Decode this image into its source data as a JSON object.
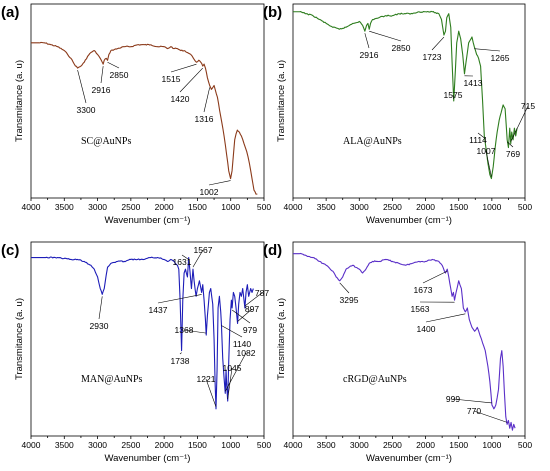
{
  "chart_data": [
    {
      "type": "line",
      "panel": "(a)",
      "sample": "SC@AuNPs",
      "color": "#8b3a1a",
      "xlabel": "Wavenumber (cm⁻¹)",
      "ylabel": "Transmitance (a. u)",
      "xlim": [
        4000,
        500
      ],
      "ylim": [
        0,
        1
      ],
      "xticks": [
        "4000",
        "3500",
        "3000",
        "2500",
        "2000",
        "1500",
        "1000",
        "500"
      ],
      "series": [
        {
          "x": [
            4000,
            3900,
            3800,
            3700,
            3600,
            3500,
            3450,
            3400,
            3350,
            3300,
            3250,
            3200,
            3150,
            3100,
            3050,
            3000,
            2960,
            2930,
            2916,
            2900,
            2870,
            2850,
            2830,
            2800,
            2700,
            2600,
            2500,
            2400,
            2300,
            2200,
            2100,
            2000,
            1950,
            1900,
            1850,
            1800,
            1750,
            1700,
            1650,
            1600,
            1560,
            1515,
            1480,
            1450,
            1420,
            1400,
            1380,
            1350,
            1316,
            1290,
            1250,
            1200,
            1150,
            1100,
            1060,
            1030,
            1002,
            980,
            960,
            940,
            920,
            900,
            870,
            840,
            800,
            760,
            720,
            680,
            650,
            620,
            600
          ],
          "y": [
            0.8,
            0.8,
            0.8,
            0.79,
            0.78,
            0.76,
            0.74,
            0.72,
            0.69,
            0.67,
            0.68,
            0.7,
            0.73,
            0.75,
            0.76,
            0.74,
            0.72,
            0.7,
            0.69,
            0.71,
            0.72,
            0.71,
            0.74,
            0.76,
            0.77,
            0.78,
            0.78,
            0.79,
            0.79,
            0.79,
            0.78,
            0.78,
            0.77,
            0.78,
            0.77,
            0.77,
            0.76,
            0.76,
            0.75,
            0.74,
            0.72,
            0.7,
            0.71,
            0.7,
            0.68,
            0.69,
            0.67,
            0.62,
            0.58,
            0.56,
            0.58,
            0.52,
            0.42,
            0.32,
            0.22,
            0.14,
            0.1,
            0.14,
            0.22,
            0.3,
            0.33,
            0.35,
            0.34,
            0.32,
            0.28,
            0.24,
            0.18,
            0.1,
            0.04,
            0.02,
            0.02
          ]
        }
      ],
      "annotations": [
        "3300",
        "2916",
        "2850",
        "1515",
        "1420",
        "1316",
        "1002"
      ]
    },
    {
      "type": "line",
      "panel": "(b)",
      "sample": "ALA@AuNPs",
      "color": "#2e7d1e",
      "xlabel": "Wavenumber (cm⁻¹)",
      "ylabel": "Transmitance (a. u)",
      "xlim": [
        4000,
        500
      ],
      "ylim": [
        0,
        1
      ],
      "xticks": [
        "4000",
        "3500",
        "3000",
        "2500",
        "2000",
        "1500",
        "1000",
        "500"
      ],
      "series": [
        {
          "x": [
            4000,
            3900,
            3800,
            3700,
            3600,
            3500,
            3400,
            3300,
            3200,
            3100,
            3000,
            2950,
            2916,
            2890,
            2870,
            2850,
            2830,
            2800,
            2700,
            2600,
            2500,
            2400,
            2300,
            2200,
            2100,
            2000,
            1900,
            1800,
            1760,
            1723,
            1700,
            1680,
            1650,
            1620,
            1600,
            1575,
            1550,
            1530,
            1500,
            1470,
            1440,
            1413,
            1390,
            1350,
            1300,
            1265,
            1230,
            1200,
            1170,
            1140,
            1114,
            1090,
            1060,
            1030,
            1007,
            980,
            950,
            920,
            890,
            860,
            830,
            800,
            769,
            750,
            730,
            715,
            700,
            680,
            660,
            640,
            620
          ],
          "y": [
            0.96,
            0.96,
            0.95,
            0.94,
            0.92,
            0.9,
            0.88,
            0.87,
            0.88,
            0.9,
            0.91,
            0.89,
            0.86,
            0.89,
            0.9,
            0.87,
            0.9,
            0.92,
            0.93,
            0.94,
            0.94,
            0.95,
            0.95,
            0.95,
            0.96,
            0.96,
            0.96,
            0.95,
            0.92,
            0.84,
            0.86,
            0.93,
            0.95,
            0.88,
            0.7,
            0.5,
            0.66,
            0.8,
            0.86,
            0.82,
            0.74,
            0.64,
            0.7,
            0.8,
            0.83,
            0.78,
            0.74,
            0.72,
            0.68,
            0.5,
            0.32,
            0.26,
            0.18,
            0.12,
            0.1,
            0.16,
            0.26,
            0.34,
            0.4,
            0.44,
            0.48,
            0.46,
            0.3,
            0.26,
            0.36,
            0.28,
            0.34,
            0.3,
            0.36,
            0.32,
            0.36
          ]
        }
      ],
      "annotations": [
        "2916",
        "2850",
        "1723",
        "1575",
        "1413",
        "1265",
        "1114",
        "1007",
        "769",
        "715"
      ]
    },
    {
      "type": "line",
      "panel": "(c)",
      "sample": "MAN@AuNPs",
      "color": "#1d1db8",
      "xlabel": "Wavenumber (cm⁻¹)",
      "ylabel": "Transmitance (a. u)",
      "xlim": [
        4000,
        500
      ],
      "ylim": [
        0,
        1
      ],
      "xticks": [
        "4000",
        "3500",
        "3000",
        "2500",
        "2000",
        "1500",
        "1000",
        "500"
      ],
      "series": [
        {
          "x": [
            4000,
            3800,
            3600,
            3400,
            3300,
            3200,
            3100,
            3050,
            3000,
            2960,
            2930,
            2900,
            2870,
            2850,
            2800,
            2700,
            2600,
            2500,
            2400,
            2300,
            2200,
            2100,
            2000,
            1950,
            1900,
            1850,
            1800,
            1780,
            1760,
            1738,
            1720,
            1700,
            1680,
            1650,
            1631,
            1610,
            1590,
            1567,
            1550,
            1520,
            1500,
            1470,
            1437,
            1420,
            1400,
            1380,
            1368,
            1350,
            1320,
            1300,
            1270,
            1250,
            1235,
            1221,
            1205,
            1190,
            1170,
            1150,
            1140,
            1120,
            1100,
            1082,
            1070,
            1060,
            1045,
            1030,
            1010,
            990,
            979,
            960,
            940,
            920,
            897,
            880,
            860,
            840,
            820,
            800,
            787,
            770,
            750,
            730,
            700,
            680,
            660
          ],
          "y": [
            0.92,
            0.92,
            0.92,
            0.91,
            0.91,
            0.9,
            0.88,
            0.86,
            0.82,
            0.76,
            0.73,
            0.76,
            0.83,
            0.87,
            0.89,
            0.9,
            0.9,
            0.91,
            0.91,
            0.91,
            0.92,
            0.92,
            0.91,
            0.9,
            0.91,
            0.9,
            0.88,
            0.86,
            0.7,
            0.44,
            0.7,
            0.84,
            0.86,
            0.82,
            0.92,
            0.84,
            0.76,
            0.86,
            0.8,
            0.72,
            0.76,
            0.8,
            0.74,
            0.78,
            0.7,
            0.6,
            0.52,
            0.62,
            0.74,
            0.76,
            0.68,
            0.5,
            0.28,
            0.14,
            0.34,
            0.66,
            0.72,
            0.64,
            0.58,
            0.4,
            0.3,
            0.22,
            0.34,
            0.26,
            0.18,
            0.38,
            0.6,
            0.7,
            0.66,
            0.74,
            0.72,
            0.66,
            0.58,
            0.68,
            0.74,
            0.72,
            0.76,
            0.7,
            0.66,
            0.74,
            0.78,
            0.72,
            0.76,
            0.74,
            0.76
          ]
        }
      ],
      "annotations": [
        "2930",
        "1738",
        "1631",
        "1567",
        "1437",
        "1368",
        "1221",
        "1140",
        "1082",
        "1045",
        "979",
        "897",
        "787"
      ]
    },
    {
      "type": "line",
      "panel": "(d)",
      "sample": "cRGD@AuNPs",
      "color": "#5a2fc8",
      "xlabel": "Wavenumber (cm⁻¹)",
      "ylabel": "Transmitance (a. u)",
      "xlim": [
        4000,
        500
      ],
      "ylim": [
        0,
        1
      ],
      "xticks": [
        "4000",
        "3500",
        "3000",
        "2500",
        "2000",
        "1500",
        "1000",
        "500"
      ],
      "series": [
        {
          "x": [
            4000,
            3900,
            3800,
            3700,
            3600,
            3500,
            3400,
            3350,
            3295,
            3250,
            3200,
            3100,
            3000,
            2950,
            2900,
            2850,
            2800,
            2700,
            2600,
            2500,
            2400,
            2300,
            2200,
            2100,
            2000,
            1900,
            1800,
            1750,
            1700,
            1673,
            1650,
            1620,
            1600,
            1580,
            1563,
            1540,
            1500,
            1460,
            1430,
            1400,
            1370,
            1340,
            1300,
            1260,
            1220,
            1180,
            1140,
            1100,
            1060,
            1030,
            999,
            970,
            940,
            900,
            870,
            850,
            830,
            810,
            790,
            770,
            750,
            730,
            710,
            690,
            670,
            650
          ],
          "y": [
            0.94,
            0.94,
            0.93,
            0.92,
            0.9,
            0.88,
            0.85,
            0.82,
            0.8,
            0.82,
            0.86,
            0.88,
            0.86,
            0.84,
            0.86,
            0.89,
            0.9,
            0.9,
            0.91,
            0.9,
            0.89,
            0.88,
            0.89,
            0.9,
            0.9,
            0.91,
            0.9,
            0.88,
            0.84,
            0.86,
            0.82,
            0.76,
            0.72,
            0.74,
            0.7,
            0.74,
            0.8,
            0.76,
            0.66,
            0.64,
            0.66,
            0.6,
            0.56,
            0.54,
            0.56,
            0.52,
            0.48,
            0.44,
            0.36,
            0.28,
            0.16,
            0.14,
            0.16,
            0.24,
            0.4,
            0.44,
            0.36,
            0.22,
            0.1,
            0.06,
            0.08,
            0.04,
            0.07,
            0.03,
            0.06,
            0.04
          ]
        }
      ],
      "annotations": [
        "3295",
        "1673",
        "1563",
        "1400",
        "999",
        "770"
      ]
    }
  ]
}
